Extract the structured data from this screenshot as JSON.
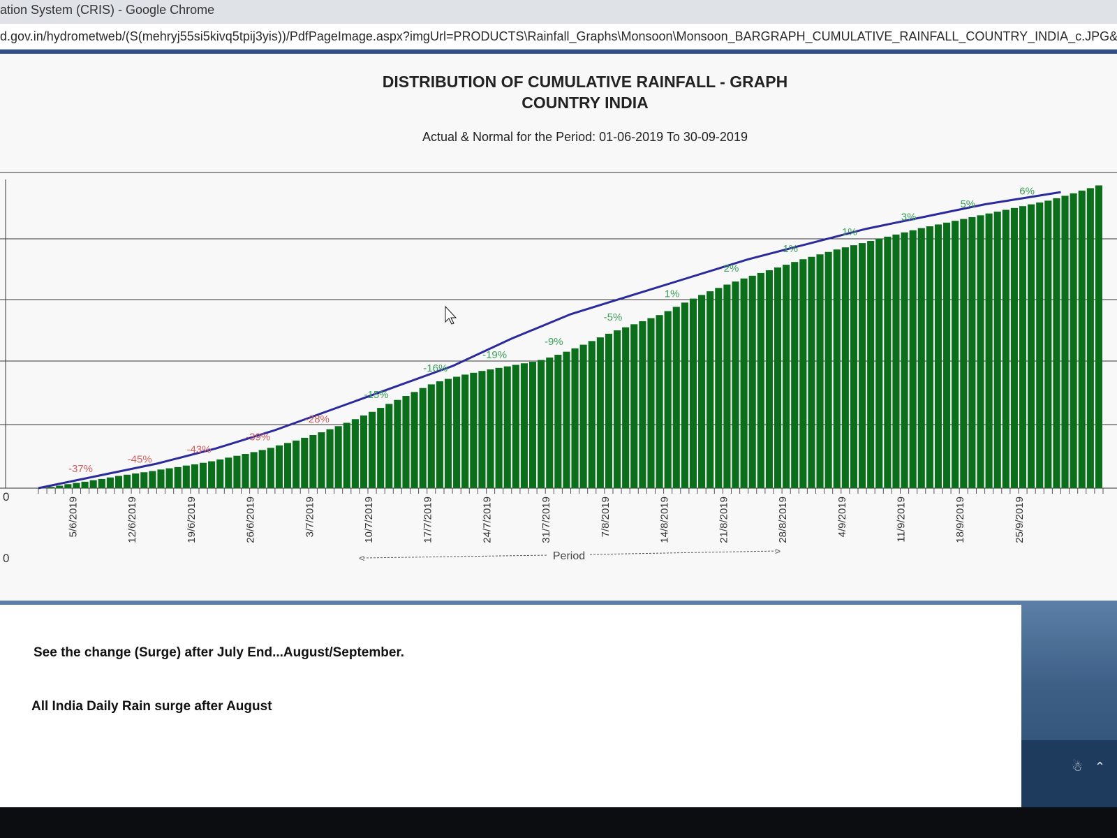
{
  "browser": {
    "title": "ation System (CRIS) - Google Chrome",
    "url": "d.gov.in/hydrometweb/(S(mehryj55si5kivq5tpij3yis))/PdfPageImage.aspx?imgUrl=PRODUCTS\\Rainfall_Graphs\\Monsoon\\Monsoon_BARGRAPH_CUMULATIVE_RAINFALL_COUNTRY_INDIA_c.JPG&lan"
  },
  "chart_data": {
    "type": "bar",
    "title": "DISTRIBUTION OF CUMULATIVE RAINFALL - GRAPH",
    "title2": "COUNTRY INDIA",
    "subtitle": "Actual & Normal for the Period: 01-06-2019 To 30-09-2019",
    "xlabel": "Period",
    "ytick_labels": [
      "0",
      "0"
    ],
    "bar_color": "#0b6e1a",
    "line_color": "#2b2a9c",
    "tick_labels": [
      "5/6/2019",
      "12/6/2019",
      "19/6/2019",
      "26/6/2019",
      "3/7/2019",
      "10/7/2019",
      "17/7/2019",
      "24/7/2019",
      "31/7/2019",
      "7/8/2019",
      "14/8/2019",
      "21/8/2019",
      "28/8/2019",
      "4/9/2019",
      "11/9/2019",
      "18/9/2019",
      "25/9/2019"
    ],
    "actual_relative": [
      0.0,
      0.004,
      0.008,
      0.013,
      0.017,
      0.021,
      0.026,
      0.03,
      0.035,
      0.04,
      0.044,
      0.048,
      0.052,
      0.056,
      0.061,
      0.065,
      0.069,
      0.074,
      0.078,
      0.083,
      0.088,
      0.094,
      0.1,
      0.106,
      0.112,
      0.118,
      0.125,
      0.132,
      0.14,
      0.148,
      0.156,
      0.165,
      0.174,
      0.183,
      0.193,
      0.203,
      0.214,
      0.226,
      0.238,
      0.25,
      0.263,
      0.276,
      0.289,
      0.302,
      0.315,
      0.328,
      0.34,
      0.35,
      0.358,
      0.365,
      0.372,
      0.378,
      0.384,
      0.389,
      0.394,
      0.399,
      0.404,
      0.409,
      0.414,
      0.42,
      0.428,
      0.437,
      0.447,
      0.458,
      0.47,
      0.482,
      0.494,
      0.506,
      0.517,
      0.527,
      0.537,
      0.547,
      0.557,
      0.567,
      0.58,
      0.594,
      0.608,
      0.621,
      0.633,
      0.645,
      0.656,
      0.667,
      0.677,
      0.687,
      0.696,
      0.705,
      0.714,
      0.723,
      0.732,
      0.741,
      0.75,
      0.758,
      0.766,
      0.774,
      0.782,
      0.789,
      0.796,
      0.803,
      0.81,
      0.817,
      0.824,
      0.831,
      0.838,
      0.845,
      0.852,
      0.858,
      0.864,
      0.87,
      0.876,
      0.882,
      0.888,
      0.894,
      0.9,
      0.906,
      0.912,
      0.918,
      0.924,
      0.93,
      0.936,
      0.942,
      0.95,
      0.958,
      0.966,
      0.975,
      0.983,
      0.992
    ],
    "normal_relative_points": [
      [
        0,
        0.0
      ],
      [
        7,
        0.04
      ],
      [
        14,
        0.08
      ],
      [
        21,
        0.13
      ],
      [
        28,
        0.19
      ],
      [
        35,
        0.26
      ],
      [
        42,
        0.33
      ],
      [
        49,
        0.4
      ],
      [
        56,
        0.49
      ],
      [
        63,
        0.57
      ],
      [
        70,
        0.63
      ],
      [
        77,
        0.69
      ],
      [
        84,
        0.75
      ],
      [
        91,
        0.8
      ],
      [
        98,
        0.85
      ],
      [
        105,
        0.89
      ],
      [
        112,
        0.93
      ],
      [
        121,
        0.97
      ]
    ],
    "annotations": [
      {
        "label": "-37%",
        "index": 5,
        "color": "#d06060"
      },
      {
        "label": "-45%",
        "index": 12,
        "color": "#d06060"
      },
      {
        "label": "-43%",
        "index": 19,
        "color": "#d06060"
      },
      {
        "label": "-39%",
        "index": 26,
        "color": "#d06060"
      },
      {
        "label": "-28%",
        "index": 33,
        "color": "#d06060"
      },
      {
        "label": "-15%",
        "index": 40,
        "color": "#3aa05a"
      },
      {
        "label": "-16%",
        "index": 47,
        "color": "#3aa05a"
      },
      {
        "label": "-19%",
        "index": 54,
        "color": "#3aa05a"
      },
      {
        "label": "-9%",
        "index": 61,
        "color": "#3aa05a"
      },
      {
        "label": "-5%",
        "index": 68,
        "color": "#3aa05a"
      },
      {
        "label": "1%",
        "index": 75,
        "color": "#3aa05a"
      },
      {
        "label": "2%",
        "index": 82,
        "color": "#3aa05a"
      },
      {
        "label": "1%",
        "index": 89,
        "color": "#3aa05a"
      },
      {
        "label": "1%",
        "index": 96,
        "color": "#3aa05a"
      },
      {
        "label": "3%",
        "index": 103,
        "color": "#3aa05a"
      },
      {
        "label": "5%",
        "index": 110,
        "color": "#3aa05a"
      },
      {
        "label": "6%",
        "index": 117,
        "color": "#3aa05a"
      }
    ]
  },
  "notes": {
    "line1": "See the change (Surge) after July End...August/September.",
    "line2": "All India Daily Rain surge after August"
  }
}
